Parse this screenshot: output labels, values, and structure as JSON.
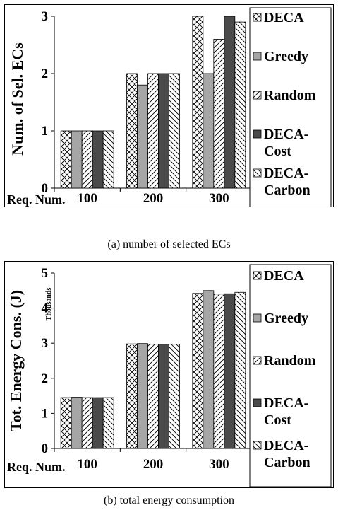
{
  "chart_data": [
    {
      "type": "bar",
      "title": "",
      "xlabel": "Req. Num.",
      "ylabel": "Num. of Sel. ECs",
      "categories": [
        "100",
        "200",
        "300"
      ],
      "ylim": [
        0,
        3
      ],
      "yticks": [
        0,
        1,
        2,
        3
      ],
      "legend_position": "right",
      "series": [
        {
          "name": "DECA",
          "pattern": "crosshatch",
          "values": [
            1,
            2,
            3
          ]
        },
        {
          "name": "Greedy",
          "pattern": "gray",
          "values": [
            1,
            1.8,
            2
          ]
        },
        {
          "name": "Random",
          "pattern": "forward-diagonal",
          "values": [
            1,
            2,
            2.6
          ]
        },
        {
          "name": "DECA-\nCost",
          "pattern": "dark",
          "values": [
            1,
            2,
            3
          ]
        },
        {
          "name": "DECA-\nCarbon",
          "pattern": "back-diagonal",
          "values": [
            1,
            2,
            2.9
          ]
        }
      ],
      "caption": "(a) number of selected ECs"
    },
    {
      "type": "bar",
      "title": "",
      "xlabel": "Req. Num.",
      "ylabel": "Tot. Energy Cons. (J)",
      "unit_note": "Thousands",
      "categories": [
        "100",
        "200",
        "300"
      ],
      "ylim": [
        0,
        5
      ],
      "yticks": [
        0,
        1,
        2,
        3,
        4,
        5
      ],
      "legend_position": "right",
      "series": [
        {
          "name": "DECA",
          "pattern": "crosshatch",
          "values": [
            1.45,
            2.98,
            4.42
          ]
        },
        {
          "name": "Greedy",
          "pattern": "gray",
          "values": [
            1.46,
            2.99,
            4.5
          ]
        },
        {
          "name": "Random",
          "pattern": "forward-diagonal",
          "values": [
            1.45,
            2.97,
            4.4
          ]
        },
        {
          "name": "DECA-\nCost",
          "pattern": "dark",
          "values": [
            1.45,
            2.97,
            4.41
          ]
        },
        {
          "name": "DECA-\nCarbon",
          "pattern": "back-diagonal",
          "values": [
            1.45,
            2.97,
            4.45
          ]
        }
      ],
      "caption": "(b) total energy consumption"
    }
  ],
  "colors": {
    "gray": "#a6a6a6",
    "dark": "#4a4a4a",
    "stroke": "#000000"
  }
}
